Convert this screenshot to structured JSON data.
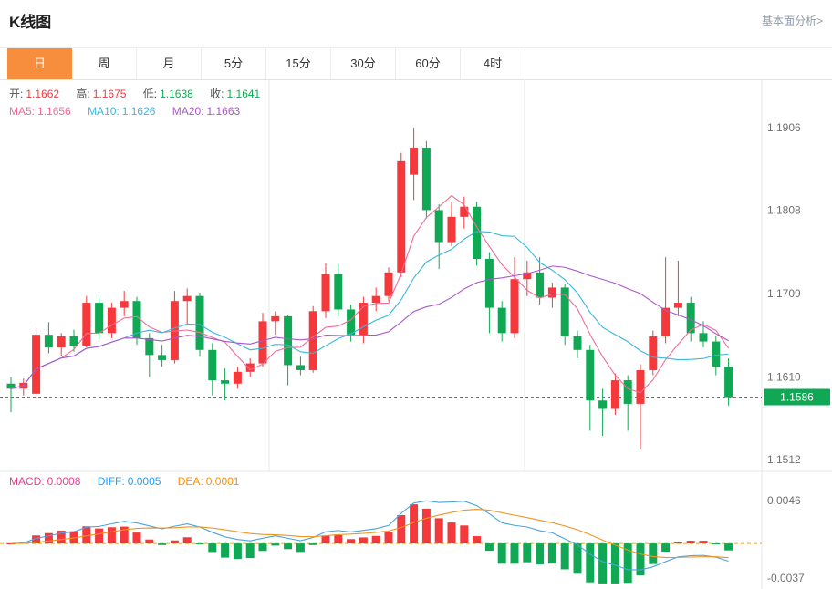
{
  "header": {
    "title": "K线图",
    "link_label": "基本面分析>"
  },
  "tabs": {
    "items": [
      "日",
      "周",
      "月",
      "5分",
      "15分",
      "30分",
      "60分",
      "4时"
    ],
    "active_index": 0
  },
  "legend": {
    "ohlc": [
      {
        "label": "开:",
        "value": "1.1662"
      },
      {
        "label": "高:",
        "value": "1.1675"
      },
      {
        "label": "低:",
        "value": "1.1638"
      },
      {
        "label": "收:",
        "value": "1.1641"
      }
    ],
    "ma": [
      {
        "label": "MA5:",
        "value": "1.1656"
      },
      {
        "label": "MA10:",
        "value": "1.1626"
      },
      {
        "label": "MA20:",
        "value": "1.1663"
      }
    ],
    "macd": [
      {
        "label": "MACD:",
        "value": "0.0008"
      },
      {
        "label": "DIFF:",
        "value": "0.0005"
      },
      {
        "label": "DEA:",
        "value": "0.0001"
      }
    ]
  },
  "chart_data": {
    "type": "candlestick",
    "title": "K线图",
    "panels": [
      "price",
      "macd"
    ],
    "y_ticks": [
      "1.1906",
      "1.1808",
      "1.1709",
      "1.1610",
      "1.1512"
    ],
    "y_min": 1.15,
    "y_max": 1.196,
    "current_price": "1.1586",
    "macd_ticks": [
      "0.0046",
      "-0.0037"
    ],
    "macd_min": -0.0047,
    "macd_max": 0.0057,
    "indicators": {
      "ma": [
        5,
        10,
        20
      ],
      "macd": [
        12,
        26,
        9
      ]
    },
    "colors": {
      "up": "#f5383b",
      "down": "#10a854",
      "ma5": "#f06e96",
      "ma10": "#3ab7dc",
      "ma20": "#ab57c8",
      "diff": "#4aa3df",
      "dea": "#f0941e",
      "grid": "#e7e7e7",
      "axis_text": "#707070",
      "price_line": "#10a854",
      "zero_line": "#f5a623",
      "tab_active": "#f78e3e"
    },
    "ohlc": [
      [
        1.1602,
        1.161,
        1.1568,
        1.1596
      ],
      [
        1.1596,
        1.1608,
        1.1588,
        1.1603
      ],
      [
        1.159,
        1.1668,
        1.1583,
        1.166
      ],
      [
        1.166,
        1.1675,
        1.1638,
        1.1645
      ],
      [
        1.1645,
        1.1662,
        1.1635,
        1.1658
      ],
      [
        1.1658,
        1.1666,
        1.164,
        1.1647
      ],
      [
        1.1647,
        1.1706,
        1.1645,
        1.1698
      ],
      [
        1.1698,
        1.1704,
        1.1655,
        1.1662
      ],
      [
        1.1662,
        1.1698,
        1.1656,
        1.1692
      ],
      [
        1.1692,
        1.1712,
        1.1682,
        1.17
      ],
      [
        1.17,
        1.1705,
        1.1648,
        1.1656
      ],
      [
        1.1656,
        1.1662,
        1.161,
        1.1636
      ],
      [
        1.1636,
        1.1648,
        1.1622,
        1.163
      ],
      [
        1.163,
        1.1712,
        1.1626,
        1.17
      ],
      [
        1.17,
        1.1715,
        1.1672,
        1.1706
      ],
      [
        1.1706,
        1.171,
        1.1634,
        1.1642
      ],
      [
        1.1642,
        1.165,
        1.1588,
        1.1606
      ],
      [
        1.1606,
        1.162,
        1.1582,
        1.1602
      ],
      [
        1.1602,
        1.1622,
        1.1596,
        1.1616
      ],
      [
        1.1616,
        1.1632,
        1.161,
        1.1626
      ],
      [
        1.1626,
        1.1686,
        1.1622,
        1.1676
      ],
      [
        1.1676,
        1.1688,
        1.166,
        1.1682
      ],
      [
        1.1682,
        1.1684,
        1.16,
        1.1624
      ],
      [
        1.1624,
        1.1634,
        1.1612,
        1.1618
      ],
      [
        1.1618,
        1.1694,
        1.1615,
        1.1688
      ],
      [
        1.1688,
        1.1745,
        1.168,
        1.1732
      ],
      [
        1.1732,
        1.1744,
        1.1682,
        1.169
      ],
      [
        1.169,
        1.1696,
        1.1652,
        1.166
      ],
      [
        1.166,
        1.1705,
        1.165,
        1.1698
      ],
      [
        1.1698,
        1.1716,
        1.1688,
        1.1706
      ],
      [
        1.1706,
        1.174,
        1.17,
        1.1734
      ],
      [
        1.1734,
        1.1876,
        1.1728,
        1.1866
      ],
      [
        1.185,
        1.1906,
        1.182,
        1.1882
      ],
      [
        1.1882,
        1.189,
        1.1798,
        1.1808
      ],
      [
        1.1808,
        1.1815,
        1.1738,
        1.177
      ],
      [
        1.177,
        1.1818,
        1.1765,
        1.18
      ],
      [
        1.18,
        1.1824,
        1.1786,
        1.1812
      ],
      [
        1.1812,
        1.1818,
        1.1742,
        1.175
      ],
      [
        1.175,
        1.1758,
        1.1662,
        1.1692
      ],
      [
        1.1692,
        1.17,
        1.1652,
        1.1662
      ],
      [
        1.1662,
        1.1752,
        1.1656,
        1.1726
      ],
      [
        1.1726,
        1.1748,
        1.1706,
        1.1734
      ],
      [
        1.1734,
        1.1752,
        1.1696,
        1.1704
      ],
      [
        1.1704,
        1.1722,
        1.1692,
        1.1716
      ],
      [
        1.1716,
        1.172,
        1.1648,
        1.1658
      ],
      [
        1.1658,
        1.1665,
        1.1632,
        1.1642
      ],
      [
        1.1642,
        1.1648,
        1.1546,
        1.1582
      ],
      [
        1.1582,
        1.1596,
        1.154,
        1.1572
      ],
      [
        1.1572,
        1.1614,
        1.1565,
        1.1606
      ],
      [
        1.1606,
        1.1612,
        1.1546,
        1.1578
      ],
      [
        1.1578,
        1.1625,
        1.1524,
        1.1618
      ],
      [
        1.1618,
        1.1665,
        1.1612,
        1.1658
      ],
      [
        1.1658,
        1.1752,
        1.165,
        1.1692
      ],
      [
        1.1692,
        1.1748,
        1.1682,
        1.1698
      ],
      [
        1.1698,
        1.1705,
        1.1652,
        1.1662
      ],
      [
        1.1662,
        1.1676,
        1.1645,
        1.1652
      ],
      [
        1.1652,
        1.1658,
        1.1612,
        1.1622
      ],
      [
        1.1622,
        1.1632,
        1.1576,
        1.1586
      ]
    ]
  }
}
